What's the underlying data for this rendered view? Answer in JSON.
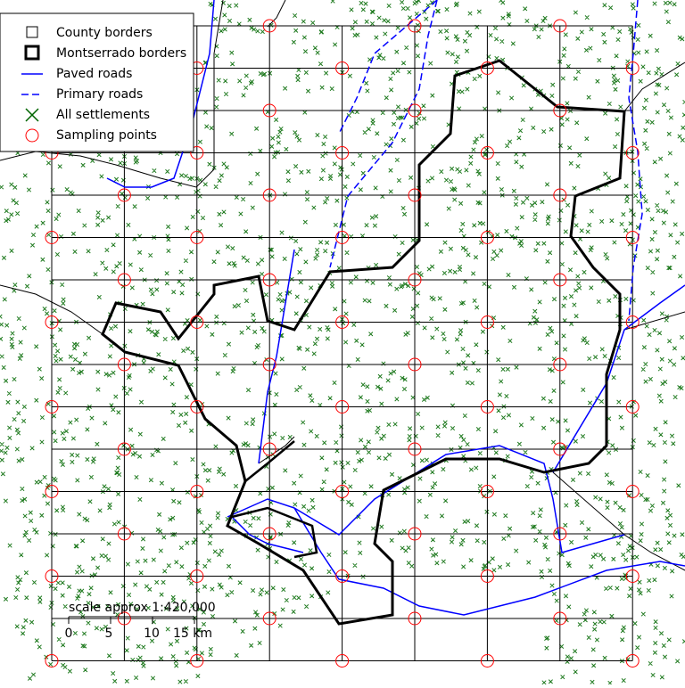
{
  "legend": {
    "items": [
      "County borders",
      "Montserrado borders",
      "Paved roads",
      "Primary roads",
      "All settlements",
      "Sampling points"
    ]
  },
  "scale": {
    "title": "scale approx 1:420,000",
    "ticks": [
      "0",
      "5",
      "10",
      "15 km"
    ]
  }
}
